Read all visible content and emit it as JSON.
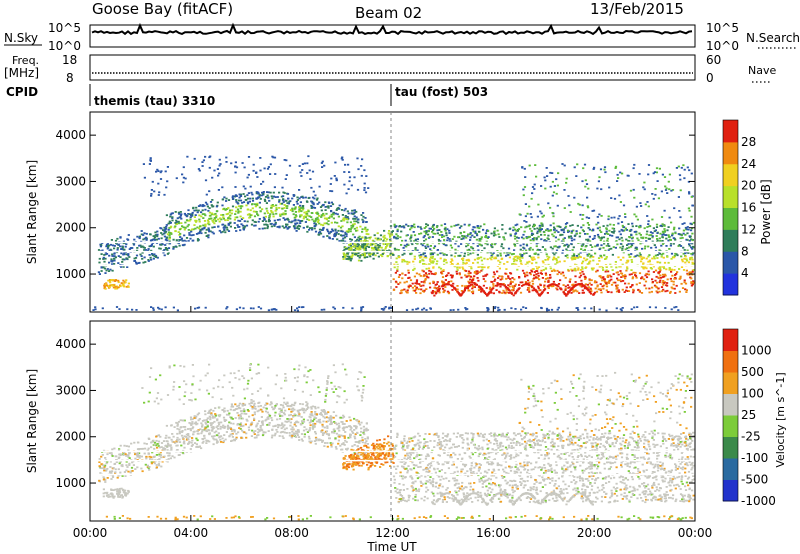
{
  "header": {
    "station": "Goose Bay (fitACF)",
    "beam": "Beam 02",
    "date": "13/Feb/2015"
  },
  "strips": {
    "nsky_label": "N.Sky",
    "nsearch_label": "N.Search",
    "noise_ticks": [
      "10^5",
      "10^0"
    ],
    "freq_label": "Freq.",
    "freq_unit": "[MHz]",
    "freq_ticks": [
      "18",
      "8"
    ],
    "nave_label": "Nave",
    "nave_ticks": [
      "60",
      "0"
    ],
    "cpid_label": "CPID",
    "cpid_segments": [
      "themis (tau) 3310",
      "tau (fost) 503"
    ]
  },
  "chart_data": [
    {
      "type": "heatmap",
      "panel": "power",
      "ylabel": "Slant Range [km]",
      "yticks": [
        1000,
        2000,
        3000,
        4000
      ],
      "ylim": [
        180,
        4500
      ],
      "xlim": [
        0,
        24
      ],
      "colorbar_label": "Power [dB]",
      "colorbar_ticks": [
        "28",
        "24",
        "20",
        "16",
        "12",
        "8",
        "4"
      ],
      "colors": [
        "#2233dd",
        "#2b57a8",
        "#2f7d5a",
        "#5dbb3a",
        "#b8e02a",
        "#f0d020",
        "#f08a10",
        "#e02010"
      ]
    },
    {
      "type": "heatmap",
      "panel": "velocity",
      "ylabel": "Slant Range [km]",
      "yticks": [
        1000,
        2000,
        3000,
        4000
      ],
      "ylim": [
        180,
        4500
      ],
      "xlim": [
        0,
        24
      ],
      "xticks": [
        "00:00",
        "04:00",
        "08:00",
        "12:00",
        "16:00",
        "20:00",
        "00:00"
      ],
      "xlabel": "Time UT",
      "colorbar_label": "Velocity [m s^-1]",
      "colorbar_ticks": [
        "1000",
        "500",
        "100",
        "25",
        "-25",
        "-100",
        "-500",
        "-1000"
      ],
      "colors": [
        "#2233cc",
        "#2a6aa0",
        "#3b8a4a",
        "#7ccc3a",
        "#c8c8c0",
        "#f0a020",
        "#f07010",
        "#e02010"
      ]
    }
  ]
}
